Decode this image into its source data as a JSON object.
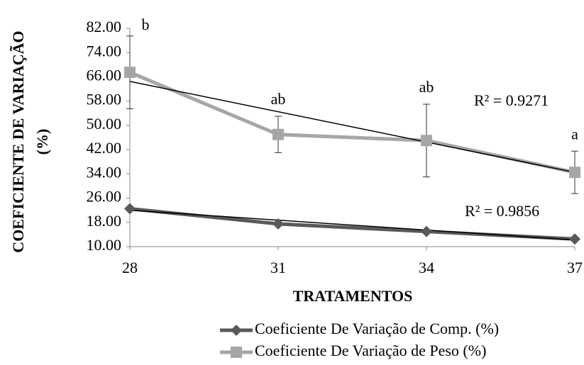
{
  "chart_data": {
    "type": "line",
    "xlabel": "TRATAMENTOS",
    "ylabel": [
      "COEFICIENTE DE VARIAÇÃO",
      "(%)"
    ],
    "x": [
      28,
      31,
      34,
      37
    ],
    "xlim": [
      28,
      37
    ],
    "xticks": [
      28,
      31,
      34,
      37
    ],
    "ylim": [
      10,
      82
    ],
    "yticks": [
      {
        "value": 10,
        "label": "10.00"
      },
      {
        "value": 18,
        "label": "18.00"
      },
      {
        "value": 26,
        "label": "26.00"
      },
      {
        "value": 34,
        "label": "34.00"
      },
      {
        "value": 42,
        "label": "42.00"
      },
      {
        "value": 50,
        "label": "50.00"
      },
      {
        "value": 58,
        "label": "58.00"
      },
      {
        "value": 66,
        "label": "66.00"
      },
      {
        "value": 74,
        "label": "74.00"
      },
      {
        "value": 82,
        "label": "82.00"
      }
    ],
    "legend": "bottom",
    "series": [
      {
        "name": "Coeficiente De Variação de Comp. (%)",
        "color": "#595959",
        "marker": "diamond",
        "values": [
          22.5,
          17.5,
          15,
          12.5
        ],
        "trend": [
          22,
          12.2
        ],
        "r2_label": "R² = 0.9856"
      },
      {
        "name": "Coeficiente De Variação de Peso (%)",
        "color": "#a6a6a6",
        "marker": "square",
        "values": [
          67.5,
          47,
          45,
          34.5
        ],
        "errors": [
          12,
          6,
          12,
          7
        ],
        "letters": [
          "b",
          "ab",
          "ab",
          "a"
        ],
        "trend": [
          64.5,
          34.5
        ],
        "r2_label": "R² = 0.9271"
      }
    ]
  }
}
